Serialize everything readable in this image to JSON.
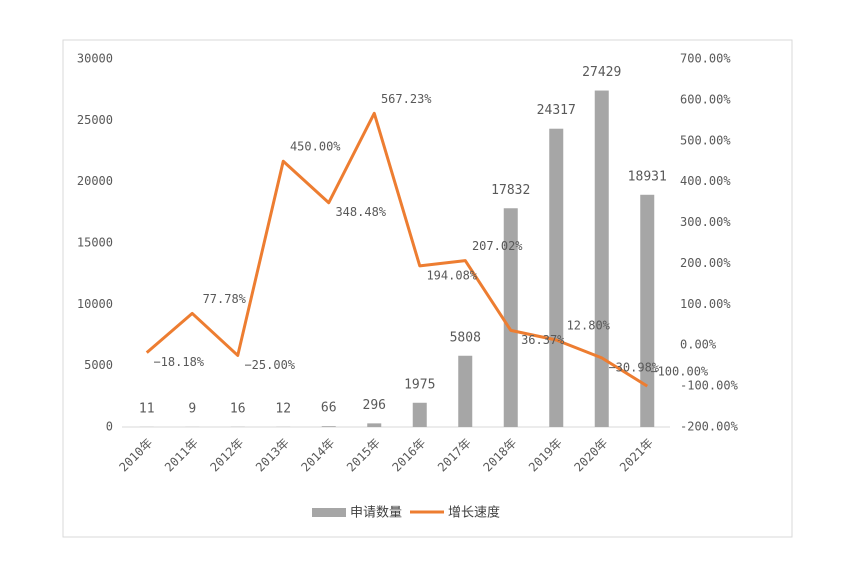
{
  "chart_data": {
    "type": "bar-line",
    "categories": [
      "2010年",
      "2011年",
      "2012年",
      "2013年",
      "2014年",
      "2015年",
      "2016年",
      "2017年",
      "2018年",
      "2019年",
      "2020年",
      "2021年"
    ],
    "series": [
      {
        "name": "申请数量",
        "type": "bar",
        "color": "#a6a6a6",
        "values": [
          11,
          9,
          16,
          12,
          66,
          296,
          1975,
          5808,
          17832,
          24317,
          27429,
          18931
        ]
      },
      {
        "name": "增长速度",
        "type": "line",
        "axis": "y2",
        "color": "#ed7d31",
        "values": [
          -18.18,
          77.78,
          -25.0,
          450.0,
          348.48,
          567.23,
          194.08,
          207.02,
          36.37,
          12.8,
          -30.98,
          -100.0
        ],
        "value_labels": [
          "−18.18%",
          "77.78%",
          "−25.00%",
          "450.00%",
          "348.48%",
          "567.23%",
          "194.08%",
          "207.02%",
          "36.37%",
          "12.80%",
          "−30.98%",
          "−100.00%"
        ]
      }
    ],
    "ylim": [
      0,
      30000
    ],
    "yticks": [
      0,
      5000,
      10000,
      15000,
      20000,
      25000,
      30000
    ],
    "y2lim": [
      -200,
      700
    ],
    "y2ticks": [
      {
        "value": -200,
        "label": "-200.00%"
      },
      {
        "value": -100,
        "label": "-100.00%"
      },
      {
        "value": 0,
        "label": "0.00%"
      },
      {
        "value": 100,
        "label": "100.00%"
      },
      {
        "value": 200,
        "label": "200.00%"
      },
      {
        "value": 300,
        "label": "300.00%"
      },
      {
        "value": 400,
        "label": "400.00%"
      },
      {
        "value": 500,
        "label": "500.00%"
      },
      {
        "value": 600,
        "label": "600.00%"
      },
      {
        "value": 700,
        "label": "700.00%"
      }
    ],
    "legend": "bottom"
  }
}
